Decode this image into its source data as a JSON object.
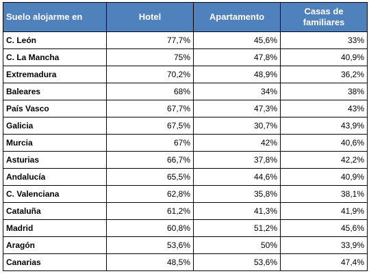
{
  "header": {
    "region": "Suelo alojarme en",
    "hotel": "Hotel",
    "apartment": "Apartamento",
    "family": "Casas de familiares"
  },
  "rows": [
    {
      "region": "C. León",
      "hotel": "77,7%",
      "apartment": "45,6%",
      "family": "33%"
    },
    {
      "region": "C. La Mancha",
      "hotel": "75%",
      "apartment": "47,8%",
      "family": "40,9%"
    },
    {
      "region": "Extremadura",
      "hotel": "70,2%",
      "apartment": "48,9%",
      "family": "36,2%"
    },
    {
      "region": "Baleares",
      "hotel": "68%",
      "apartment": "34%",
      "family": "38%"
    },
    {
      "region": "País Vasco",
      "hotel": "67,7%",
      "apartment": "47,3%",
      "family": "43%"
    },
    {
      "region": "Galicia",
      "hotel": "67,5%",
      "apartment": "30,7%",
      "family": "43,9%"
    },
    {
      "region": "Murcia",
      "hotel": "67%",
      "apartment": "42%",
      "family": "40,6%"
    },
    {
      "region": "Asturias",
      "hotel": "66,7%",
      "apartment": "37,8%",
      "family": "42,2%"
    },
    {
      "region": "Andalucía",
      "hotel": "65,5%",
      "apartment": "44,6%",
      "family": "40,9%"
    },
    {
      "region": "C. Valenciana",
      "hotel": "62,8%",
      "apartment": "35,8%",
      "family": "38,1%"
    },
    {
      "region": "Cataluña",
      "hotel": "61,2%",
      "apartment": "41,3%",
      "family": "41,9%"
    },
    {
      "region": "Madrid",
      "hotel": "60,8%",
      "apartment": "51,2%",
      "family": "45,6%"
    },
    {
      "region": "Aragón",
      "hotel": "53,6%",
      "apartment": "50%",
      "family": "33,9%"
    },
    {
      "region": "Canarias",
      "hotel": "48,5%",
      "apartment": "53,6%",
      "family": "47,4%"
    }
  ]
}
